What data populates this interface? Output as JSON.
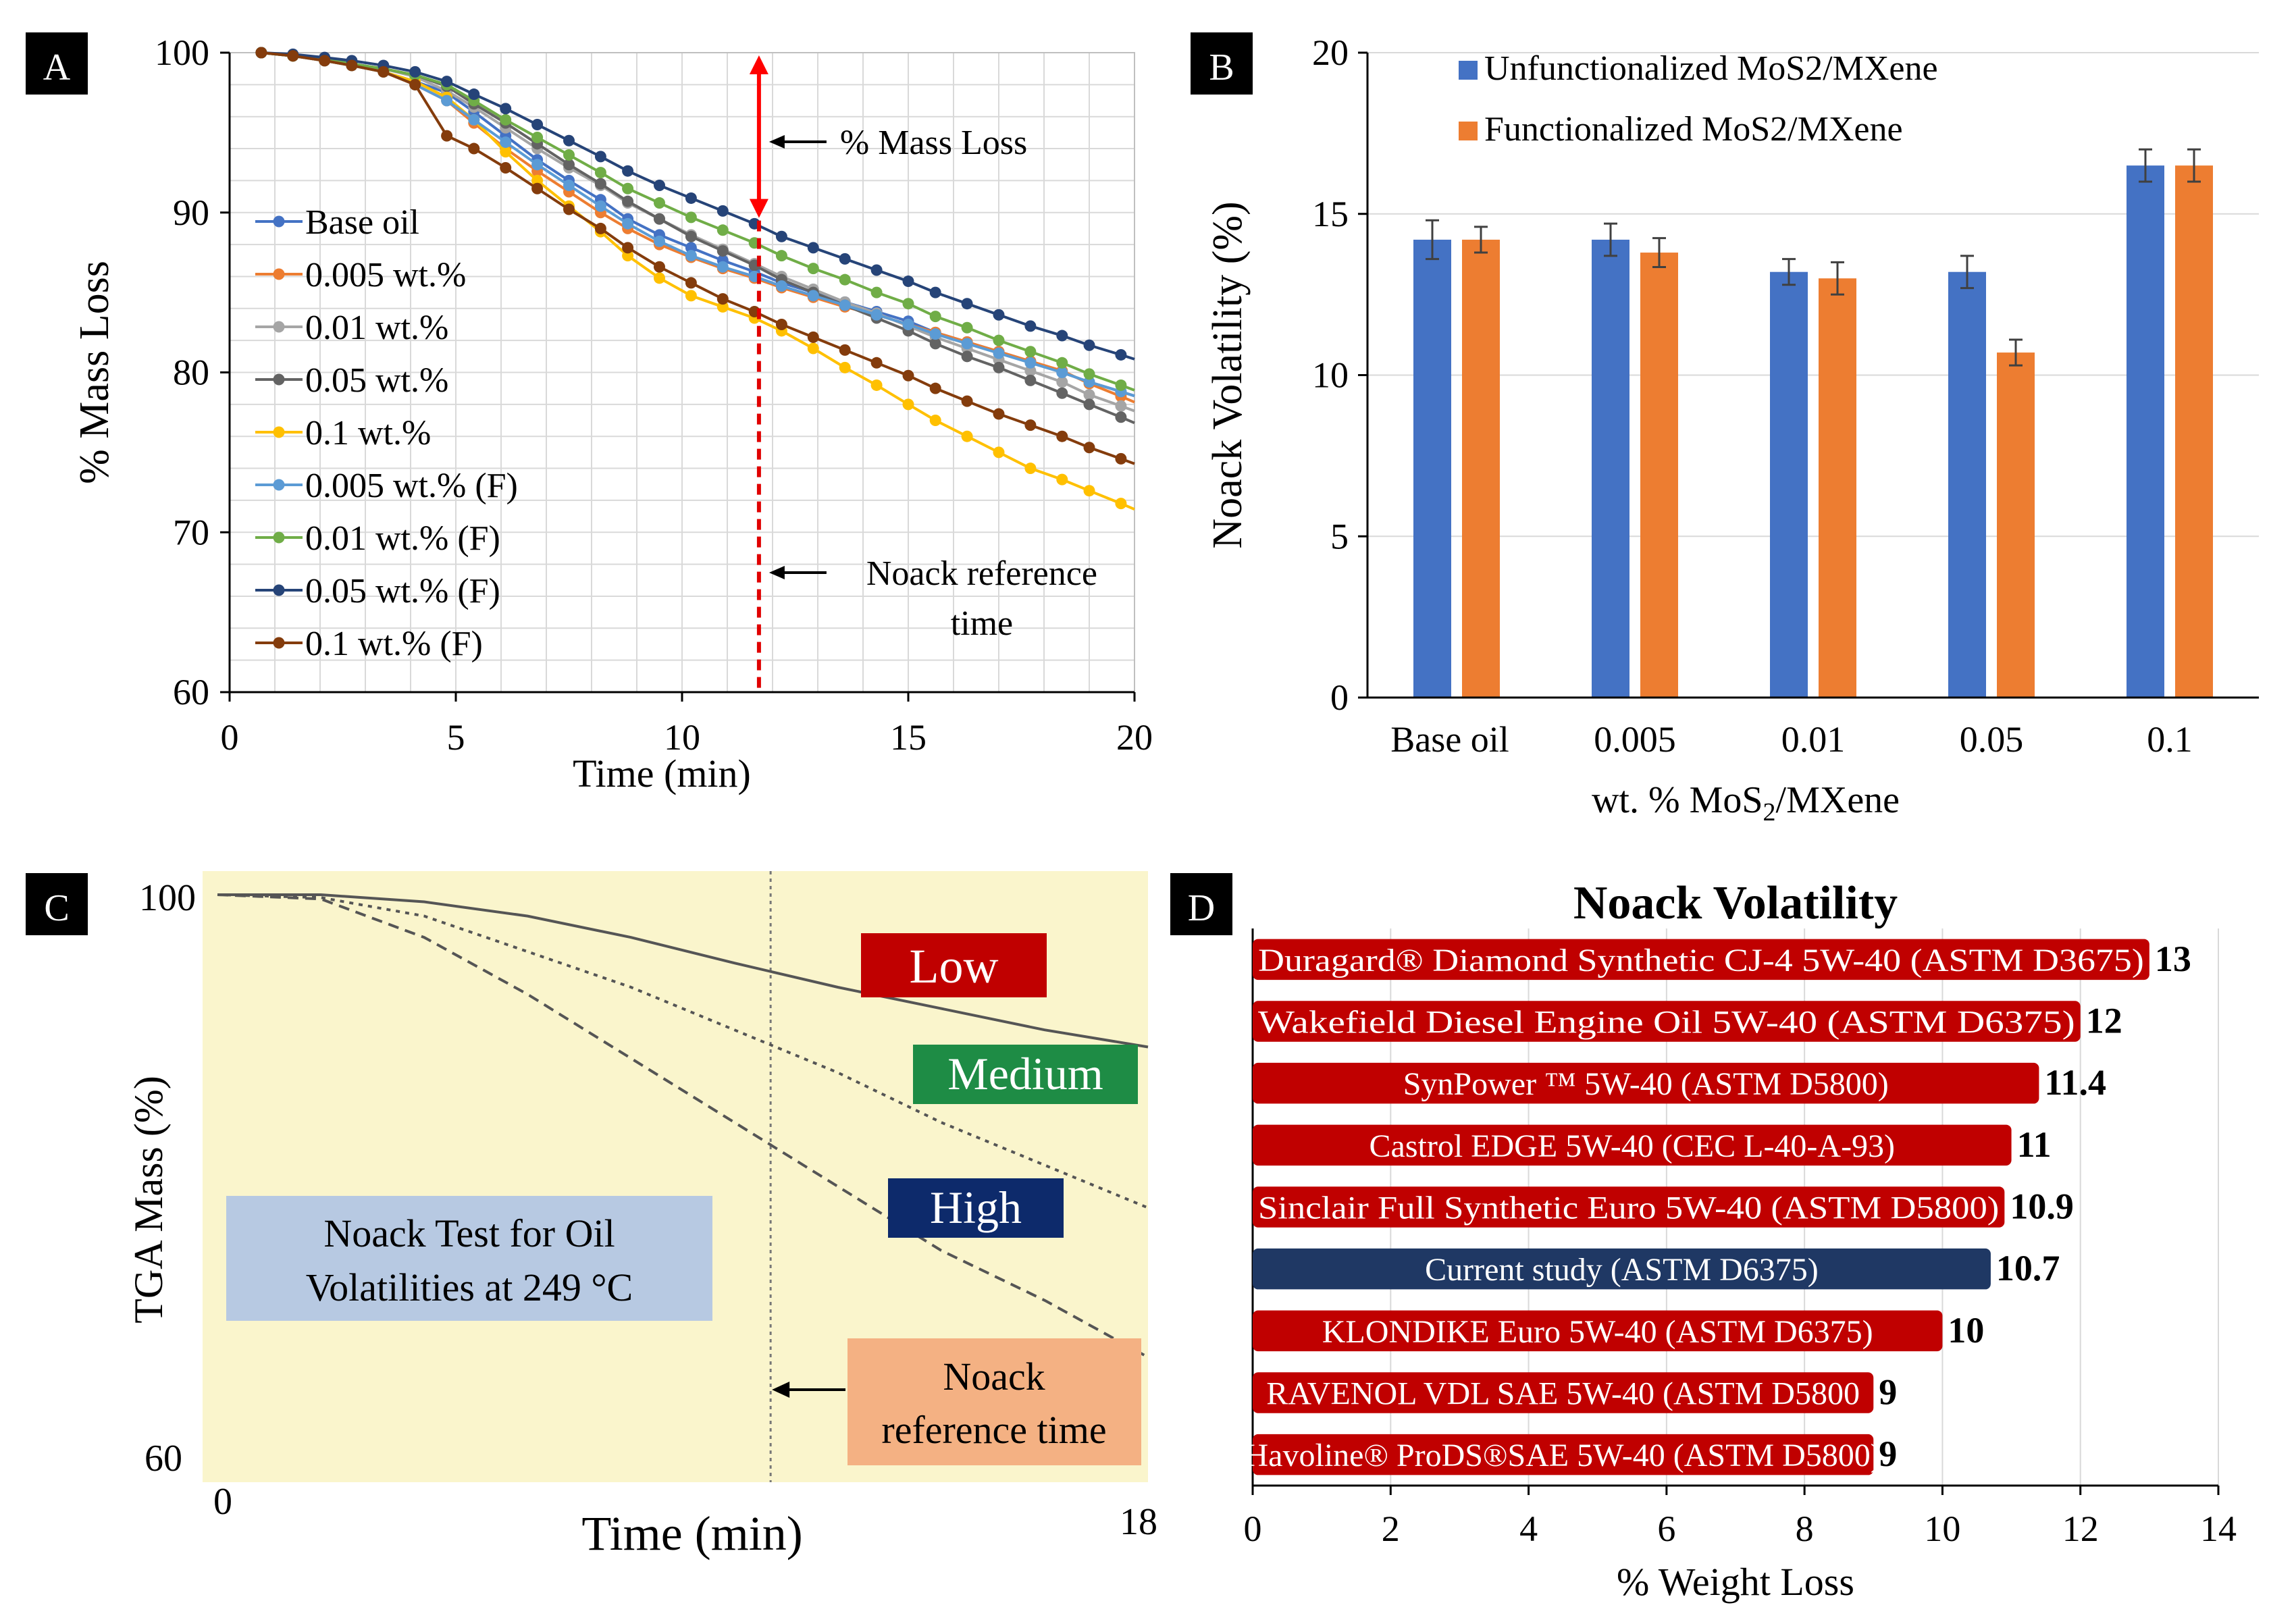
{
  "panels": {
    "a": "A",
    "b": "B",
    "c": "C",
    "d": "D"
  },
  "chart_data": [
    {
      "id": "A",
      "type": "line",
      "xlabel": "Time (min)",
      "ylabel": "% Mass Loss",
      "xlim": [
        0,
        20
      ],
      "ylim": [
        60,
        100
      ],
      "xticks": [
        "0",
        "5",
        "10",
        "15",
        "20"
      ],
      "yticks": [
        "60",
        "70",
        "80",
        "90",
        "100"
      ],
      "grid": true,
      "legend": "left",
      "annotations": {
        "mass_loss": "% Mass Loss",
        "noack_line1": "Noack reference",
        "noack_line2": "time"
      },
      "reference_time": 11.7,
      "x": [
        0.7,
        1.4,
        2.1,
        2.7,
        3.4,
        4.1,
        4.8,
        5.4,
        6.1,
        6.8,
        7.5,
        8.2,
        8.8,
        9.5,
        10.2,
        10.9,
        11.6,
        12.2,
        12.9,
        13.6,
        14.3,
        15.0,
        15.6,
        16.3,
        17.0,
        17.7,
        18.4,
        19.0,
        19.7
      ],
      "series": [
        {
          "name": "Base oil",
          "color": "#4472C4",
          "values": [
            100,
            99.8,
            99.5,
            99.2,
            98.8,
            98.2,
            97.5,
            96.3,
            94.8,
            93.3,
            92.0,
            90.8,
            89.6,
            88.6,
            87.8,
            87.0,
            86.3,
            85.6,
            85.0,
            84.4,
            83.8,
            83.2,
            82.5,
            81.9,
            81.3,
            80.7,
            80.0,
            79.4,
            78.8
          ]
        },
        {
          "name": "0.005 wt.%",
          "color": "#ED7D31",
          "values": [
            100,
            99.8,
            99.5,
            99.2,
            98.8,
            98.0,
            97.0,
            95.6,
            94.0,
            92.6,
            91.3,
            90.0,
            89.0,
            88.0,
            87.2,
            86.5,
            85.9,
            85.3,
            84.7,
            84.1,
            83.6,
            83.0,
            82.5,
            81.9,
            81.3,
            80.7,
            80.1,
            79.3,
            78.5
          ]
        },
        {
          "name": "0.01 wt.%",
          "color": "#A5A5A5",
          "values": [
            100,
            99.8,
            99.6,
            99.3,
            99.0,
            98.5,
            97.6,
            96.6,
            95.3,
            94.0,
            92.8,
            91.7,
            90.6,
            89.6,
            88.6,
            87.7,
            86.8,
            86.0,
            85.2,
            84.4,
            83.7,
            82.9,
            82.2,
            81.5,
            80.8,
            80.1,
            79.4,
            78.6,
            77.9
          ]
        },
        {
          "name": "0.05 wt.%",
          "color": "#636363",
          "values": [
            100,
            99.8,
            99.6,
            99.3,
            99.0,
            98.6,
            97.9,
            96.8,
            95.6,
            94.3,
            93.0,
            91.8,
            90.7,
            89.6,
            88.5,
            87.6,
            86.7,
            85.8,
            85.0,
            84.2,
            83.4,
            82.6,
            81.8,
            81.0,
            80.3,
            79.5,
            78.7,
            78.0,
            77.2
          ]
        },
        {
          "name": "0.1 wt.%",
          "color": "#FFC000",
          "values": [
            100,
            99.8,
            99.5,
            99.2,
            98.8,
            98.2,
            97.2,
            95.8,
            93.8,
            92.0,
            90.4,
            88.8,
            87.3,
            85.9,
            84.8,
            84.1,
            83.4,
            82.6,
            81.5,
            80.3,
            79.2,
            78.0,
            77.0,
            76.0,
            75.0,
            74.0,
            73.3,
            72.6,
            71.8
          ]
        },
        {
          "name": "0.005 wt.% (F)",
          "color": "#5B9BD5",
          "values": [
            100,
            99.8,
            99.5,
            99.2,
            98.8,
            98.0,
            97.0,
            95.8,
            94.4,
            93.0,
            91.7,
            90.4,
            89.3,
            88.2,
            87.3,
            86.6,
            86.0,
            85.4,
            84.8,
            84.2,
            83.6,
            83.0,
            82.4,
            81.8,
            81.2,
            80.6,
            80.0,
            79.4,
            78.8
          ]
        },
        {
          "name": "0.01 wt.% (F)",
          "color": "#70AD47",
          "values": [
            100,
            99.8,
            99.6,
            99.3,
            99.0,
            98.6,
            98.0,
            97.0,
            95.8,
            94.7,
            93.6,
            92.5,
            91.5,
            90.6,
            89.7,
            88.9,
            88.1,
            87.3,
            86.5,
            85.8,
            85.0,
            84.3,
            83.5,
            82.8,
            82.0,
            81.3,
            80.6,
            79.9,
            79.2
          ]
        },
        {
          "name": "0.05 wt.% (F)",
          "color": "#264478",
          "values": [
            100,
            99.9,
            99.7,
            99.5,
            99.2,
            98.8,
            98.2,
            97.4,
            96.5,
            95.5,
            94.5,
            93.5,
            92.6,
            91.7,
            90.9,
            90.1,
            89.3,
            88.5,
            87.8,
            87.1,
            86.4,
            85.7,
            85.0,
            84.3,
            83.6,
            82.9,
            82.3,
            81.7,
            81.1
          ]
        },
        {
          "name": "0.1 wt.% (F)",
          "color": "#843C0C",
          "values": [
            100,
            99.8,
            99.5,
            99.2,
            98.8,
            98.0,
            94.8,
            94.0,
            92.8,
            91.5,
            90.2,
            89.0,
            87.8,
            86.6,
            85.6,
            84.6,
            83.8,
            83.0,
            82.2,
            81.4,
            80.6,
            79.8,
            79.0,
            78.2,
            77.4,
            76.7,
            76.0,
            75.3,
            74.6
          ]
        }
      ]
    },
    {
      "id": "B",
      "type": "bar",
      "categories": [
        "Base oil",
        "0.005",
        "0.01",
        "0.05",
        "0.1"
      ],
      "xlabel_main": "wt. % MoS",
      "xlabel_sub": "2",
      "xlabel_rest": "/MXene",
      "ylabel": "Noack Volatility (%)",
      "ylim": [
        0,
        20
      ],
      "yticks": [
        "0",
        "5",
        "10",
        "15",
        "20"
      ],
      "grid": true,
      "legend": "top",
      "series": [
        {
          "name": "Unfunctionalized MoS2/MXene",
          "color": "#4472C4",
          "values": [
            14.2,
            14.2,
            13.2,
            13.2,
            16.5
          ],
          "errors": [
            0.6,
            0.5,
            0.4,
            0.5,
            0.5
          ]
        },
        {
          "name": "Functionalized MoS2/MXene",
          "color": "#ED7D31",
          "values": [
            14.2,
            13.8,
            13.0,
            10.7,
            16.5
          ],
          "errors": [
            0.4,
            0.45,
            0.5,
            0.4,
            0.5
          ]
        }
      ]
    },
    {
      "id": "C",
      "type": "line",
      "xlabel": "Time (min)",
      "ylabel": "TGA Mass (%)",
      "xlim": [
        0,
        18
      ],
      "ylim": [
        60,
        100
      ],
      "xticks": [
        "0",
        "18"
      ],
      "yticks": [
        "60",
        "100"
      ],
      "reference_time": 10.7,
      "series": [
        {
          "name": "Low",
          "color": "#C00000",
          "x": [
            0,
            2,
            4,
            6,
            8,
            10,
            12,
            14,
            16,
            18
          ],
          "values": [
            100,
            100,
            99.5,
            98.5,
            97,
            95.2,
            93.5,
            92,
            90.5,
            89.3
          ]
        },
        {
          "name": "Medium",
          "color": "#1E8C45",
          "x": [
            0,
            2,
            4,
            6,
            8,
            10,
            12,
            14,
            16,
            18
          ],
          "values": [
            100,
            99.8,
            98.5,
            96,
            93.5,
            90.5,
            87.5,
            84,
            81,
            78
          ]
        },
        {
          "name": "High",
          "color": "#0D2A6B",
          "x": [
            0,
            2,
            4,
            6,
            8,
            10,
            12,
            14,
            16,
            18
          ],
          "values": [
            100,
            99.7,
            97,
            93,
            88.5,
            84,
            79.5,
            75,
            71.5,
            67.5
          ]
        }
      ],
      "box_text": [
        "Noack Test for Oil",
        "Volatilities at 249 °C"
      ],
      "reference_label": [
        "Noack",
        "reference time"
      ]
    },
    {
      "id": "D",
      "type": "bar",
      "orientation": "horizontal",
      "title": "Noack Volatility",
      "xlabel": "% Weight Loss",
      "xlim": [
        0,
        14
      ],
      "xticks": [
        "0",
        "2",
        "4",
        "6",
        "8",
        "10",
        "12",
        "14"
      ],
      "grid": true,
      "bars": [
        {
          "label": "Duragard® Diamond Synthetic CJ-4 5W-40 (ASTM D3675)",
          "value": 13,
          "value_label": "13",
          "color": "#C00000"
        },
        {
          "label": "Wakefield Diesel Engine Oil 5W-40 (ASTM D6375)",
          "value": 12,
          "value_label": "12",
          "color": "#C00000"
        },
        {
          "label": "SynPower ™ 5W-40 (ASTM D5800)",
          "value": 11.4,
          "value_label": "11.4",
          "color": "#C00000"
        },
        {
          "label": "Castrol EDGE 5W-40 (CEC L-40-A-93)",
          "value": 11,
          "value_label": "11",
          "color": "#C00000"
        },
        {
          "label": "Sinclair Full Synthetic Euro 5W-40 (ASTM D5800)",
          "value": 10.9,
          "value_label": "10.9",
          "color": "#C00000"
        },
        {
          "label": "Current study (ASTM D6375)",
          "value": 10.7,
          "value_label": "10.7",
          "color": "#1F3864"
        },
        {
          "label": "KLONDIKE Euro 5W-40 (ASTM D6375)",
          "value": 10,
          "value_label": "10",
          "color": "#C00000"
        },
        {
          "label": "RAVENOL VDL SAE 5W-40 (ASTM D5800",
          "value": 9,
          "value_label": "9",
          "color": "#C00000"
        },
        {
          "label": "Havoline® ProDS®SAE 5W-40 (ASTM D5800)",
          "value": 9,
          "value_label": "9",
          "color": "#C00000"
        }
      ]
    }
  ]
}
